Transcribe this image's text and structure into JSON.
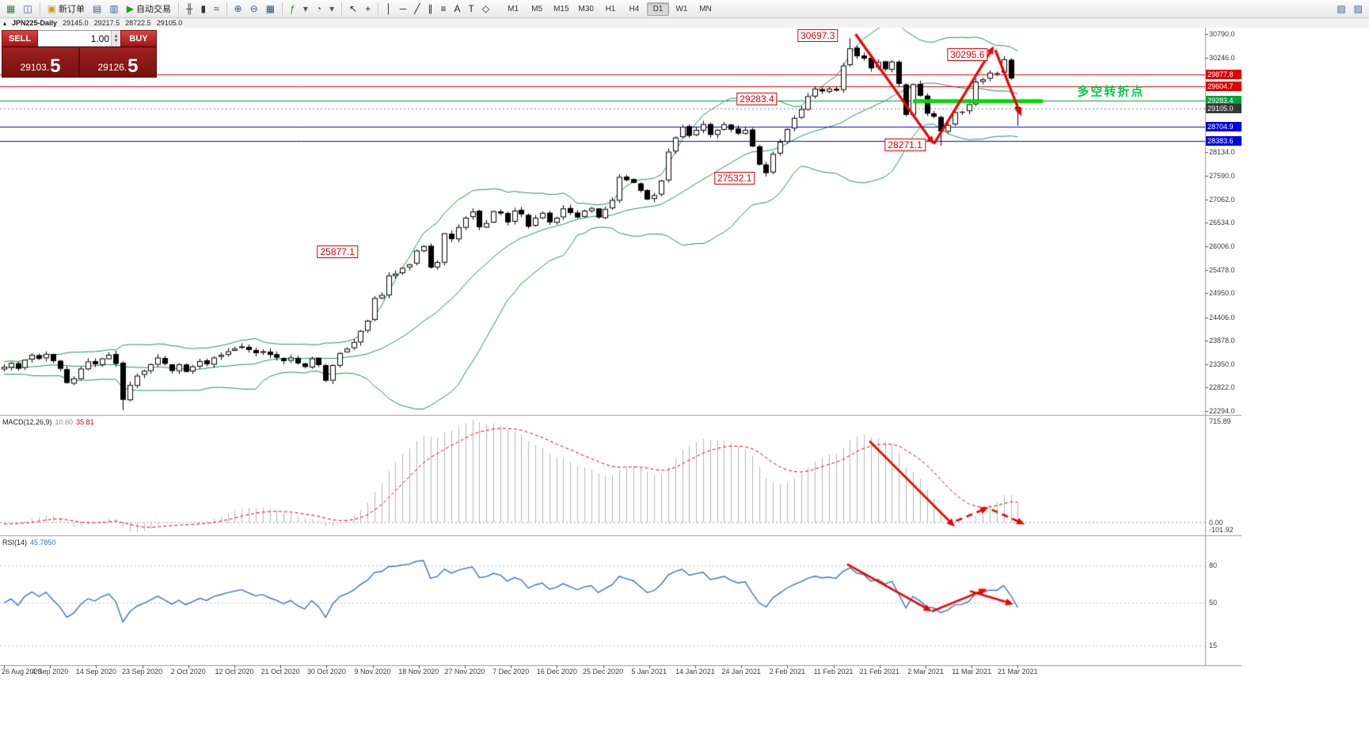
{
  "toolbar": {
    "items": [
      {
        "name": "new-chart",
        "glyph": "▦",
        "tint": "#2f7d4f"
      },
      {
        "name": "chart-profiles",
        "glyph": "◫",
        "tint": "#33609c"
      },
      {
        "sep": true
      },
      {
        "name": "new-order",
        "glyph": "▣",
        "tint": "#c79f1e",
        "label": "新订单"
      },
      {
        "name": "market-watch",
        "glyph": "▤",
        "tint": "#33609c"
      },
      {
        "name": "terminal",
        "glyph": "▥",
        "tint": "#33609c"
      },
      {
        "name": "auto-trading",
        "glyph": "▶",
        "tint": "#13a113",
        "label": "自动交易"
      },
      {
        "sep": true
      },
      {
        "name": "bar-chart",
        "glyph": "╫",
        "tint": "#333333"
      },
      {
        "name": "candlestick-chart",
        "glyph": "▮",
        "tint": "#333333"
      },
      {
        "name": "line-chart",
        "glyph": "≈",
        "tint": "#333333"
      },
      {
        "sep": true
      },
      {
        "name": "zoom-in",
        "glyph": "⊕",
        "tint": "#31557f"
      },
      {
        "name": "zoom-out",
        "glyph": "⊖",
        "tint": "#31557f"
      },
      {
        "name": "tile-windows",
        "glyph": "▦",
        "tint": "#31557f"
      },
      {
        "sep": true
      },
      {
        "name": "indicators",
        "glyph": "ƒ",
        "tint": "#13a113"
      },
      {
        "name": "indicators-dropdown",
        "glyph": "▾",
        "tint": "#555555"
      },
      {
        "name": "periods",
        "glyph": "◔",
        "tint": "#555555"
      },
      {
        "name": "periods-dropdown",
        "glyph": "▾",
        "tint": "#555555"
      },
      {
        "sep": true
      },
      {
        "name": "cursor",
        "glyph": "↖",
        "tint": "#222222"
      },
      {
        "name": "crosshair",
        "glyph": "+",
        "tint": "#222222"
      },
      {
        "sep": true
      },
      {
        "name": "vertical-line",
        "glyph": "│",
        "tint": "#222222"
      },
      {
        "name": "horizontal-line",
        "glyph": "─",
        "tint": "#222222"
      },
      {
        "name": "trendline",
        "glyph": "╱",
        "tint": "#222222"
      },
      {
        "name": "equidistant-channel",
        "glyph": "∥",
        "tint": "#222222"
      },
      {
        "name": "fibonacci",
        "glyph": "≡",
        "tint": "#222222"
      },
      {
        "name": "text",
        "glyph": "A",
        "tint": "#222222"
      },
      {
        "name": "text-label",
        "glyph": "T",
        "tint": "#222222"
      },
      {
        "name": "arrows-dropdown",
        "glyph": "◇",
        "tint": "#222222"
      }
    ],
    "timeframes": [
      "M1",
      "M5",
      "M15",
      "M30",
      "H1",
      "H4",
      "D1",
      "W1",
      "MN"
    ],
    "active_timeframe": "D1",
    "right_icons": [
      {
        "name": "window-restore",
        "glyph": "▧",
        "tint": "#33609c"
      },
      {
        "name": "window-list",
        "glyph": "▨",
        "tint": "#33609c"
      }
    ]
  },
  "symbol_bar": {
    "collapse_glyph": "▴",
    "title": "JPN225-Daily",
    "open": "29145.0",
    "high": "29217.5",
    "low": "28722.5",
    "close": "29105.0"
  },
  "order_panel": {
    "sell_label": "SELL",
    "buy_label": "BUY",
    "volume": "1.00",
    "spin_up": "▴",
    "spin_down": "▾",
    "sell_price_base": "29103.",
    "sell_price_pip": "5",
    "buy_price_base": "29126.",
    "buy_price_pip": "5"
  },
  "macd_label": {
    "name": "MACD(12,26,9)",
    "main": "10.60",
    "signal": "35.81"
  },
  "rsi_label": {
    "name": "RSI(14)",
    "value": "45.7850"
  },
  "chart_data": {
    "type": "candlestick",
    "symbol": "JPN225",
    "timeframe": "Daily",
    "current_ohlc": {
      "open": 29145.0,
      "high": 29217.5,
      "low": 28722.5,
      "close": 29105.0
    },
    "closes": [
      23290,
      23380,
      23250,
      23450,
      23560,
      23470,
      23580,
      23420,
      23250,
      22930,
      23030,
      23250,
      23410,
      23350,
      23480,
      23560,
      23360,
      22550,
      22880,
      23090,
      23200,
      23350,
      23500,
      23360,
      23200,
      23350,
      23180,
      23300,
      23420,
      23350,
      23500,
      23560,
      23640,
      23700,
      23750,
      23670,
      23600,
      23640,
      23560,
      23500,
      23420,
      23500,
      23370,
      23290,
      23480,
      23330,
      22980,
      23330,
      23600,
      23700,
      23850,
      24100,
      24330,
      24840,
      24910,
      25350,
      25390,
      25520,
      25600,
      25910,
      26010,
      25530,
      25650,
      26300,
      26170,
      26440,
      26650,
      26790,
      26440,
      26530,
      26800,
      26750,
      26550,
      26810,
      26730,
      26450,
      26650,
      26760,
      26550,
      26650,
      26860,
      26760,
      26660,
      26810,
      26870,
      26660,
      26850,
      27050,
      27570,
      27500,
      27440,
      27260,
      27060,
      27160,
      27490,
      28140,
      28460,
      28700,
      28500,
      28630,
      28760,
      28520,
      28630,
      28760,
      28640,
      28550,
      28630,
      28260,
      27850,
      27660,
      28090,
      28360,
      28650,
      28900,
      29100,
      29390,
      29560,
      29500,
      29560,
      29520,
      30080,
      30470,
      30290,
      30240,
      30020,
      30160,
      30000,
      30170,
      29670,
      28970,
      29660,
      29400,
      29000,
      28930,
      28600,
      28740,
      29030,
      29040,
      29210,
      29720,
      29770,
      29920,
      29910,
      30220,
      29790,
      29105
    ],
    "candle_overrides": {
      "17": {
        "low": 22310
      },
      "121": {
        "high": 30697.3
      },
      "134": {
        "low": 28271.1
      },
      "143": {
        "high": 30295.6
      },
      "145": {
        "open": 29145.0,
        "high": 29217.5,
        "low": 28722.5
      }
    },
    "x_labels": [
      "26 Aug 2020",
      "4 Sep 2020",
      "14 Sep 2020",
      "23 Sep 2020",
      "2 Oct 2020",
      "12 Oct 2020",
      "21 Oct 2020",
      "30 Oct 2020",
      "9 Nov 2020",
      "18 Nov 2020",
      "27 Nov 2020",
      "7 Dec 2020",
      "16 Dec 2020",
      "25 Dec 2020",
      "5 Jan 2021",
      "14 Jan 2021",
      "24 Jan 2021",
      "2 Feb 2021",
      "11 Feb 2021",
      "21 Feb 2021",
      "2 Mar 2021",
      "11 Mar 2021",
      "21 Mar 2021"
    ],
    "y_ticks": [
      "30790.0",
      "30246.0",
      "28134.0",
      "27590.0",
      "27062.0",
      "26534.0",
      "26006.0",
      "25478.0",
      "24950.0",
      "24406.0",
      "23878.0",
      "23350.0",
      "22822.0",
      "22294.0"
    ],
    "y_range": {
      "price_at_bottom": 22294,
      "price_at_top": 30951
    },
    "hlines": [
      {
        "price": 29877.8,
        "color": "#e00000",
        "style": "solid"
      },
      {
        "price": 29604.7,
        "color": "#e00000",
        "style": "solid"
      },
      {
        "price": 29283.4,
        "color": "#009a3c",
        "style": "solid"
      },
      {
        "price": 29105.0,
        "color": "#7a8aa0",
        "style": "dot"
      },
      {
        "price": 28704.9,
        "color": "#0000e8",
        "style": "solid"
      },
      {
        "price": 28383.6,
        "color": "#0000e8",
        "style": "solid"
      }
    ],
    "badges": [
      {
        "text": "29877.8",
        "bg": "#e00000"
      },
      {
        "text": "29604.7",
        "bg": "#e00000"
      },
      {
        "text": "29283.4",
        "bg": "#00a03c"
      },
      {
        "text": "29105.0",
        "bg": "#383838"
      },
      {
        "text": "28704.9",
        "bg": "#0000dc"
      },
      {
        "text": "28383.6",
        "bg": "#0000dc"
      }
    ],
    "callouts": [
      {
        "text": "30697.3",
        "ci": 116.4,
        "price": 30755
      },
      {
        "text": "30295.6",
        "ci": 137.8,
        "price": 30330
      },
      {
        "text": "29283.4",
        "ci": 107.7,
        "price": 29327
      },
      {
        "text": "28271.1",
        "ci": 128.9,
        "price": 28292
      },
      {
        "text": "27532.1",
        "ci": 104.5,
        "price": 27542
      },
      {
        "text": "25877.1",
        "ci": 47.7,
        "price": 25882
      }
    ],
    "green_segment": {
      "c1": 130,
      "c2": 148.6,
      "price": 29278,
      "color": "#00d800",
      "width": 5
    },
    "note": {
      "text": "多空转折点",
      "ci": 153.5,
      "price": 29510,
      "color": "#00cc44"
    },
    "arrows": {
      "color": "#ee0000",
      "main": [
        {
          "c1": 121.8,
          "p1": 30790,
          "c2": 133.0,
          "p2": 28310,
          "dash": false
        },
        {
          "c1": 133.0,
          "p1": 28310,
          "c2": 141.6,
          "p2": 30520,
          "dash": false
        },
        {
          "c1": 141.8,
          "p1": 30430,
          "c2": 145.5,
          "p2": 28940,
          "dash": false
        }
      ],
      "macd": [
        {
          "c1": 123.8,
          "f1": 0.19,
          "c2": 136.0,
          "f2": 0.95,
          "dash": false
        },
        {
          "c1": 136.2,
          "f1": 0.9,
          "c2": 140.8,
          "f2": 0.78,
          "dash": true
        },
        {
          "c1": 141.3,
          "f1": 0.8,
          "c2": 146.0,
          "f2": 0.93,
          "dash": true
        }
      ],
      "rsi": [
        {
          "c1": 120.6,
          "f1": 0.15,
          "c2": 132.7,
          "f2": 0.55,
          "dash": false
        },
        {
          "c1": 132.7,
          "f1": 0.55,
          "c2": 140.6,
          "f2": 0.36,
          "dash": false
        },
        {
          "c1": 138.2,
          "f1": 0.38,
          "c2": 144.4,
          "f2": 0.49,
          "dash": false
        }
      ]
    },
    "indicators": {
      "bollinger": {
        "period": 20,
        "deviation": 2,
        "color": "#1e9455"
      },
      "macd": {
        "fast": 12,
        "slow": 26,
        "signal": 9,
        "hist_color": "#b4b4b4",
        "signal_color": "#e00000",
        "scale_labels": [
          "715.89",
          "0.00",
          "-101.92"
        ]
      },
      "rsi": {
        "period": 14,
        "color": "#3b6fc4",
        "levels": [
          80,
          50,
          15
        ],
        "scale_labels": [
          "80",
          "50",
          "15"
        ]
      }
    },
    "candle_colors": {
      "up_fill": "#ffffff",
      "down_fill": "#000000",
      "stroke": "#000000"
    }
  }
}
